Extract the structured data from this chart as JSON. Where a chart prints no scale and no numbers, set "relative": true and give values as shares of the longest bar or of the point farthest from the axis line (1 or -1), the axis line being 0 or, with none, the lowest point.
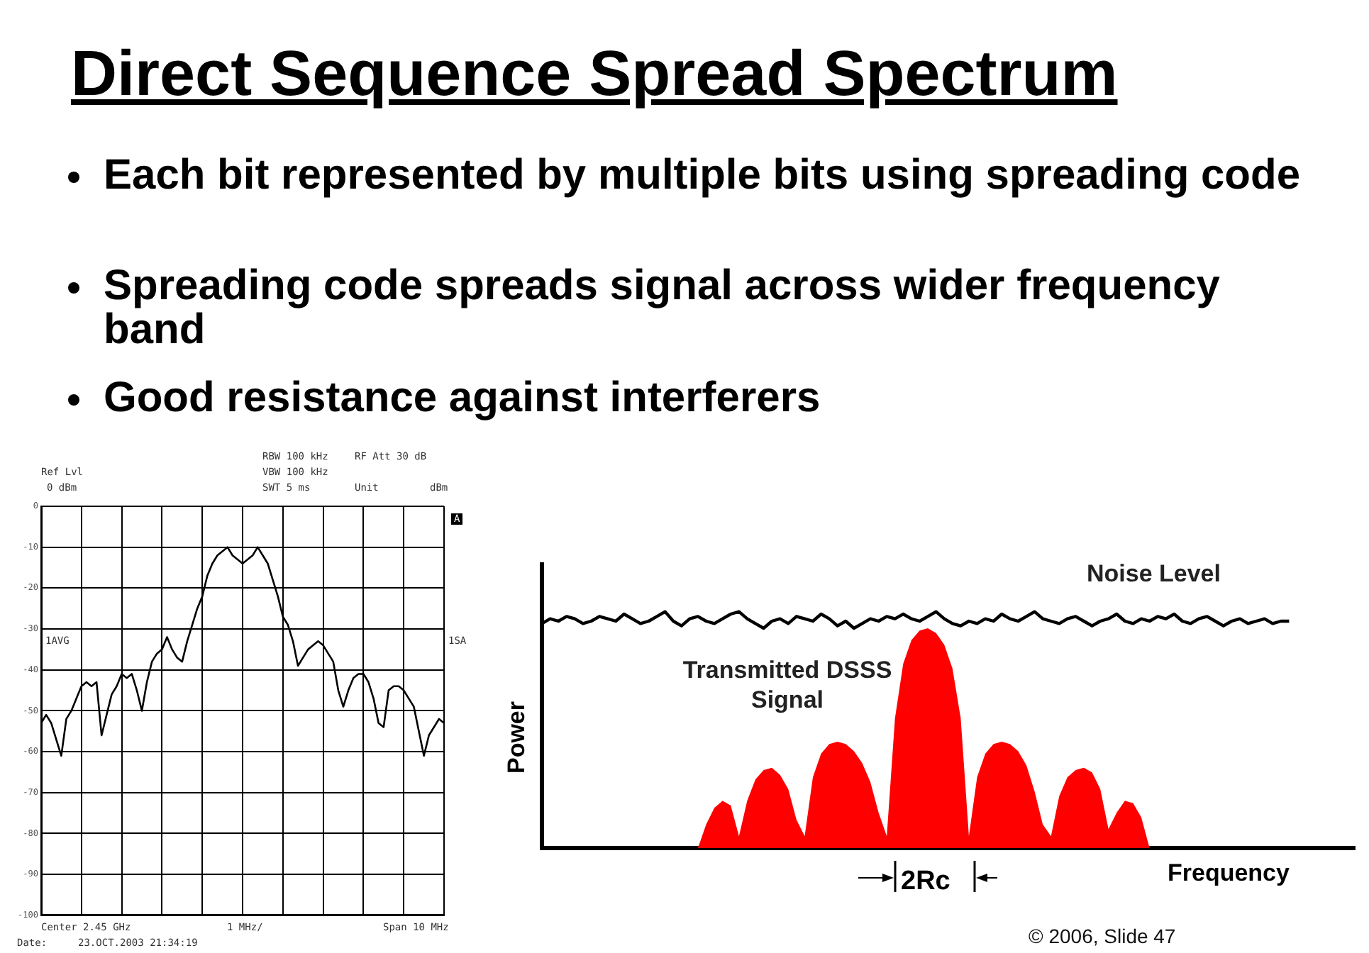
{
  "chart_data": [
    {
      "type": "other",
      "title": "Direct Sequence Spread Spectrum",
      "annotations": [
        "Each bit represented by multiple bits using spreading code",
        "Spreading code spreads signal across wider frequency band",
        "Good resistance against interferers"
      ]
    },
    {
      "type": "line",
      "color": "#000000",
      "categories": [
        null,
        null,
        null,
        null,
        null,
        null,
        null,
        null,
        null,
        null,
        null,
        null,
        null,
        null,
        null,
        null,
        null,
        null,
        null,
        null,
        null,
        null,
        null,
        null,
        null,
        null,
        null,
        null,
        null,
        null,
        null,
        null,
        null,
        null,
        null,
        null,
        null,
        null,
        null,
        null,
        null,
        null,
        null,
        null,
        null,
        null,
        null,
        null,
        null,
        null,
        null,
        null,
        null,
        null,
        null,
        null,
        null,
        null,
        null,
        null,
        null,
        null,
        null,
        null,
        null,
        null,
        null,
        null,
        null,
        null,
        null,
        null,
        null,
        null,
        null,
        null,
        null,
        null,
        null,
        null,
        null
      ],
      "values": [
        -53,
        -51,
        -53,
        -57,
        -61,
        -52,
        -50,
        -47,
        -44,
        -43,
        -44,
        -43,
        -56,
        -51,
        -46,
        -44,
        -41,
        -42,
        -41,
        -45,
        -50,
        -43,
        -38,
        -36,
        -35,
        -32,
        -35,
        -37,
        -38,
        -33,
        -29,
        -25,
        -22,
        -17,
        -14,
        -12,
        -11,
        -10,
        -12,
        -13,
        -14,
        -13,
        -12,
        -10,
        -12,
        -14,
        -18,
        -22,
        -27,
        -29,
        -33,
        -39,
        -37,
        -35,
        -34,
        -33,
        -34,
        -36,
        -38,
        -45,
        -49,
        -45,
        -42,
        -41,
        -41,
        -43,
        -47,
        -53,
        -54,
        -45,
        -44,
        -44,
        -45,
        -47,
        -49,
        -55,
        -61,
        -56,
        -54,
        -52,
        -53
      ],
      "ylim": [
        -100,
        0
      ],
      "yticks": [
        0,
        -10,
        -20,
        -30,
        -40,
        -50,
        -60,
        -70,
        -80,
        -90,
        -100
      ],
      "grid": true,
      "tick_labels": "y",
      "annotations": [
        "Ref Lvl",
        "0 dBm",
        "RBW 100 kHz",
        "VBW 100 kHz",
        "SWT 5 ms",
        "RF Att 30 dB",
        "Unit",
        "dBm",
        "A",
        "1AVG",
        "1SA",
        "Center 2.45 GHz",
        "1 MHz/",
        "Span 10 MHz",
        "Date:",
        "23.OCT.2003 21:34:19"
      ]
    },
    {
      "type": "area",
      "relative": true,
      "tick_labels": false,
      "xlabel": "Frequency",
      "ylabel": "Power",
      "categories": [
        null,
        null,
        null,
        null,
        null,
        null,
        null,
        null,
        null,
        null,
        null,
        null,
        null,
        null,
        null,
        null,
        null,
        null,
        null,
        null,
        null,
        null,
        null,
        null,
        null,
        null,
        null,
        null,
        null,
        null,
        null,
        null,
        null,
        null,
        null,
        null,
        null,
        null,
        null,
        null,
        null,
        null,
        null,
        null,
        null,
        null,
        null,
        null,
        null,
        null,
        null,
        null,
        null,
        null,
        null,
        null,
        null,
        null,
        null,
        null,
        null,
        null,
        null,
        null,
        null,
        null,
        null,
        null,
        null,
        null,
        null,
        null,
        null,
        null,
        null,
        null,
        null,
        null,
        null,
        null,
        null,
        null,
        null,
        null,
        null,
        null,
        null,
        null,
        null,
        null,
        null,
        null,
        null,
        null,
        null,
        null,
        null,
        null,
        null,
        null
      ],
      "series": [
        {
          "name": "Noise Level",
          "type": "line",
          "color": "#000000",
          "values": [
            0.95,
            0.97,
            0.96,
            0.98,
            0.97,
            0.95,
            0.96,
            0.98,
            0.97,
            0.96,
            0.99,
            0.97,
            0.95,
            0.96,
            0.98,
            1.0,
            0.96,
            0.94,
            0.97,
            0.98,
            0.96,
            0.95,
            0.97,
            0.99,
            1.0,
            0.97,
            0.95,
            0.93,
            0.96,
            0.97,
            0.95,
            0.98,
            0.97,
            0.96,
            0.99,
            0.97,
            0.94,
            0.96,
            0.93,
            0.95,
            0.97,
            0.96,
            0.98,
            0.97,
            0.99,
            0.97,
            0.96,
            0.98,
            1.0,
            0.97,
            0.95,
            0.94,
            0.96,
            0.95,
            0.97,
            0.96,
            0.99,
            0.97,
            0.96,
            0.98,
            1.0,
            0.97,
            0.96,
            0.95,
            0.97,
            0.98,
            0.96,
            0.94,
            0.96,
            0.97,
            0.99,
            0.96,
            0.95,
            0.97,
            0.96,
            0.98,
            0.97,
            0.99,
            0.96,
            0.95,
            0.97,
            0.98,
            0.96,
            0.94,
            0.96,
            0.97,
            0.95,
            0.96,
            0.97,
            0.95,
            0.96,
            0.96,
            null,
            null,
            null,
            null,
            null,
            null,
            null,
            null
          ]
        },
        {
          "name": "Transmitted DSSS Signal",
          "color": "#ff0000",
          "values": [
            null,
            null,
            null,
            null,
            null,
            null,
            null,
            null,
            null,
            null,
            null,
            null,
            null,
            null,
            null,
            null,
            null,
            null,
            null,
            0,
            0.1,
            0.17,
            0.2,
            0.18,
            0.05,
            0.2,
            0.29,
            0.33,
            0.34,
            0.31,
            0.25,
            0.12,
            0.05,
            0.3,
            0.4,
            0.44,
            0.45,
            0.44,
            0.41,
            0.36,
            0.28,
            0.15,
            0.05,
            0.55,
            0.78,
            0.88,
            0.92,
            0.93,
            0.91,
            0.86,
            0.76,
            0.55,
            0.05,
            0.3,
            0.4,
            0.44,
            0.45,
            0.44,
            0.41,
            0.35,
            0.24,
            0.1,
            0.05,
            0.22,
            0.3,
            0.33,
            0.34,
            0.32,
            0.25,
            0.08,
            0.15,
            0.2,
            0.19,
            0.13,
            0,
            null,
            null,
            null,
            null,
            null,
            null,
            null,
            null,
            null,
            null,
            null,
            null,
            null,
            null,
            null,
            null,
            null,
            null,
            null,
            null,
            null,
            null,
            null,
            null,
            null
          ]
        }
      ],
      "annotations": [
        "2Rc",
        "© 2006, Slide 47"
      ]
    }
  ]
}
